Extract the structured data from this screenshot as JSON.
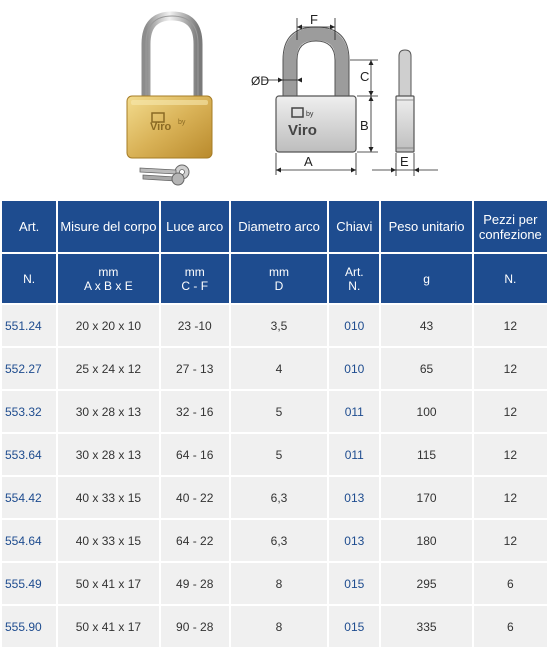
{
  "figure": {
    "logo_text": "Viro",
    "logo_by": "by",
    "dim_labels": {
      "F": "F",
      "D": "ØD",
      "C": "C",
      "B": "B",
      "A": "A",
      "E": "E"
    }
  },
  "table": {
    "header1": [
      "Art.",
      "Misure del corpo",
      "Luce arco",
      "Diametro arco",
      "Chiavi",
      "Peso unitario",
      "Pezzi per confezione"
    ],
    "header2": [
      [
        "N."
      ],
      [
        "mm",
        "A x B x E"
      ],
      [
        "mm",
        "C - F"
      ],
      [
        "mm",
        "D"
      ],
      [
        "Art.",
        "N."
      ],
      [
        "g"
      ],
      [
        "N."
      ]
    ],
    "rows": [
      [
        "551.24",
        "20 x 20 x 10",
        "23 -10",
        "3,5",
        "010",
        "43",
        "12"
      ],
      [
        "552.27",
        "25 x 24 x 12",
        "27 - 13",
        "4",
        "010",
        "65",
        "12"
      ],
      [
        "553.32",
        "30 x 28 x 13",
        "32 - 16",
        "5",
        "011",
        "100",
        "12"
      ],
      [
        "553.64",
        "30 x 28 x 13",
        "64 - 16",
        "5",
        "011",
        "115",
        "12"
      ],
      [
        "554.42",
        "40 x 33 x 15",
        "40 - 22",
        "6,3",
        "013",
        "170",
        "12"
      ],
      [
        "554.64",
        "40 x 33 x 15",
        "64 - 22",
        "6,3",
        "013",
        "180",
        "12"
      ],
      [
        "555.49",
        "50 x 41 x 17",
        "49 - 28",
        "8",
        "015",
        "295",
        "6"
      ],
      [
        "555.90",
        "50 x 41 x 17",
        "90 - 28",
        "8",
        "015",
        "335",
        "6"
      ]
    ]
  }
}
